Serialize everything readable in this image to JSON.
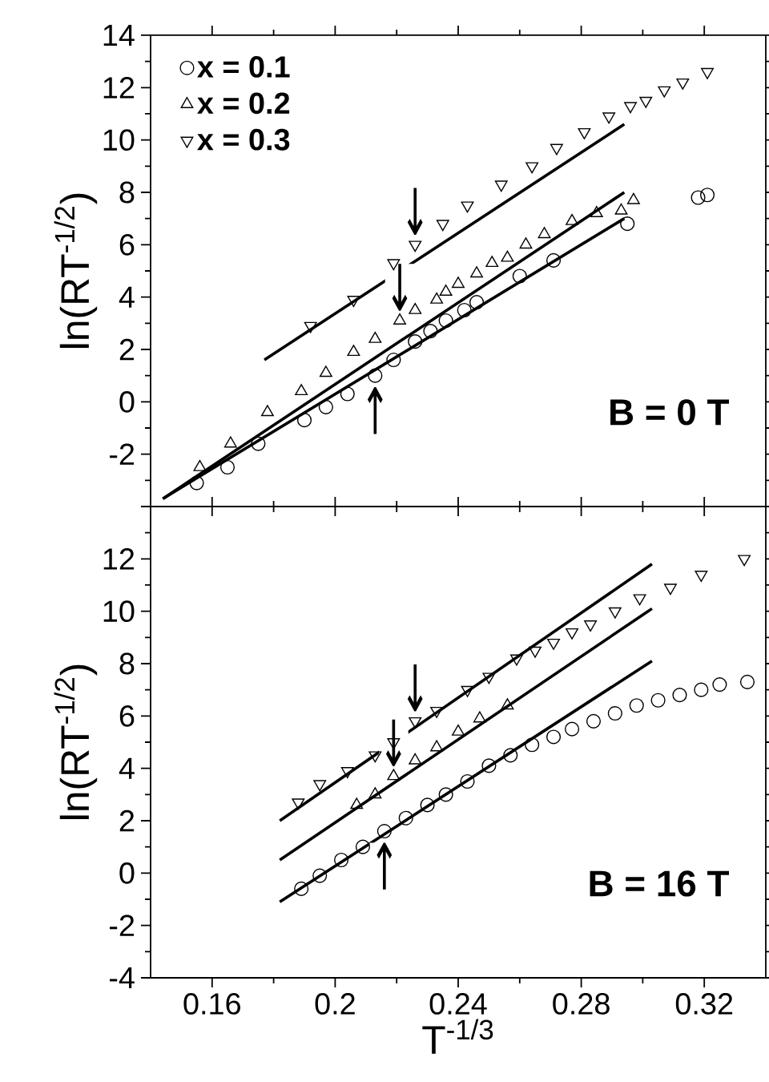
{
  "chart_data": [
    {
      "type": "scatter",
      "ylabel": "ln(RT$^{-1/2}$)",
      "xlim": [
        0.14,
        0.34
      ],
      "ylim": [
        -4,
        14
      ],
      "xticks": [
        0.16,
        0.2,
        0.24,
        0.28,
        0.32
      ],
      "yticks": [
        {
          "value": -4,
          "label": null
        },
        -2,
        0,
        2,
        4,
        6,
        8,
        10,
        12,
        14
      ],
      "tick_labels": "y",
      "legend": "top left",
      "annotations": [
        "B = 0 T",
        {
          "text": "↓",
          "x": 0.226,
          "y": 6.0
        },
        {
          "text": "↓",
          "x": 0.221,
          "y": 3.1
        },
        {
          "text": "↑",
          "x": 0.213,
          "y": 1.0
        }
      ],
      "series": [
        {
          "name": "x = 0.1",
          "marker": "circle",
          "color": "#000000",
          "x": [
            0.155,
            0.165,
            0.175,
            0.19,
            0.197,
            0.204,
            0.213,
            0.219,
            0.226,
            0.231,
            0.236,
            0.242,
            0.246,
            0.26,
            0.271,
            0.295,
            0.318,
            0.321
          ],
          "values": [
            -3.1,
            -2.5,
            -1.6,
            -0.7,
            -0.2,
            0.3,
            1.0,
            1.6,
            2.3,
            2.7,
            3.1,
            3.5,
            3.8,
            4.8,
            5.4,
            6.8,
            7.8,
            7.9
          ]
        },
        {
          "name": "x = 0.2",
          "marker": "triangle",
          "color": "#000000",
          "x": [
            0.156,
            0.166,
            0.178,
            0.189,
            0.197,
            0.206,
            0.213,
            0.221,
            0.226,
            0.233,
            0.236,
            0.24,
            0.246,
            0.251,
            0.256,
            0.262,
            0.268,
            0.277,
            0.285,
            0.293,
            0.297
          ],
          "values": [
            -2.5,
            -1.6,
            -0.4,
            0.4,
            1.1,
            1.9,
            2.4,
            3.1,
            3.5,
            3.9,
            4.2,
            4.5,
            4.9,
            5.3,
            5.5,
            6.0,
            6.4,
            6.9,
            7.2,
            7.3,
            7.7
          ]
        },
        {
          "name": "x = 0.3",
          "marker": "triangle down",
          "color": "#000000",
          "x": [
            0.192,
            0.206,
            0.219,
            0.226,
            0.235,
            0.243,
            0.254,
            0.264,
            0.272,
            0.281,
            0.289,
            0.296,
            0.301,
            0.307,
            0.313,
            0.321
          ],
          "values": [
            2.9,
            3.9,
            5.3,
            6.0,
            6.8,
            7.5,
            8.3,
            9.0,
            9.7,
            10.3,
            10.9,
            11.3,
            11.5,
            11.9,
            12.2,
            12.6
          ]
        },
        {
          "type": "line",
          "marker": "none",
          "color": "#000000",
          "x": [
            0.144,
            0.294
          ],
          "values": [
            -3.7,
            7.0
          ]
        },
        {
          "type": "line",
          "marker": "none",
          "color": "#000000",
          "x": [
            0.144,
            0.294
          ],
          "values": [
            -3.7,
            8.0
          ]
        },
        {
          "type": "line",
          "marker": "none",
          "color": "#000000",
          "x": [
            0.177,
            0.294
          ],
          "values": [
            1.6,
            10.6
          ]
        }
      ]
    },
    {
      "type": "scatter",
      "xlabel": "T$^{-1/3}$",
      "ylabel": "ln(RT$^{-1/2}$)",
      "xlim": [
        0.14,
        0.34
      ],
      "ylim": [
        -4,
        14
      ],
      "xticks": [
        0.16,
        0.2,
        0.24,
        0.28,
        0.32
      ],
      "yticks": [
        -4,
        -2,
        0,
        2,
        4,
        6,
        8,
        10,
        12,
        {
          "value": 14,
          "label": null
        }
      ],
      "annotations": [
        "B = 16 T",
        {
          "text": "↓",
          "x": 0.226,
          "y": 5.8
        },
        {
          "text": "↓",
          "x": 0.219,
          "y": 3.7
        },
        {
          "text": "↑",
          "x": 0.216,
          "y": 1.6
        }
      ],
      "series": [
        {
          "marker": "circle",
          "color": "#000000",
          "x": [
            0.189,
            0.195,
            0.202,
            0.209,
            0.216,
            0.223,
            0.23,
            0.236,
            0.243,
            0.25,
            0.257,
            0.264,
            0.271,
            0.277,
            0.284,
            0.291,
            0.298,
            0.305,
            0.312,
            0.319,
            0.325,
            0.334
          ],
          "values": [
            -0.6,
            -0.1,
            0.5,
            1.0,
            1.6,
            2.1,
            2.6,
            3.0,
            3.5,
            4.1,
            4.5,
            4.9,
            5.2,
            5.5,
            5.8,
            6.1,
            6.4,
            6.6,
            6.8,
            7.0,
            7.2,
            7.3
          ]
        },
        {
          "marker": "triangle",
          "color": "#000000",
          "x": [
            0.207,
            0.213,
            0.219,
            0.226,
            0.233,
            0.24,
            0.247,
            0.256
          ],
          "values": [
            2.6,
            3.0,
            3.7,
            4.3,
            4.8,
            5.4,
            5.9,
            6.4
          ]
        },
        {
          "marker": "triangle down",
          "color": "#000000",
          "x": [
            0.188,
            0.195,
            0.204,
            0.213,
            0.219,
            0.226,
            0.233,
            0.243,
            0.25,
            0.259,
            0.265,
            0.271,
            0.277,
            0.283,
            0.291,
            0.299,
            0.309,
            0.319,
            0.333
          ],
          "values": [
            2.7,
            3.4,
            3.9,
            4.5,
            5.0,
            5.8,
            6.2,
            7.0,
            7.5,
            8.2,
            8.5,
            8.8,
            9.2,
            9.5,
            10.0,
            10.5,
            10.9,
            11.4,
            12.0
          ]
        },
        {
          "type": "line",
          "marker": "none",
          "color": "#000000",
          "x": [
            0.182,
            0.303
          ],
          "values": [
            -1.1,
            8.1
          ]
        },
        {
          "type": "line",
          "marker": "none",
          "color": "#000000",
          "x": [
            0.182,
            0.303
          ],
          "values": [
            0.5,
            10.1
          ]
        },
        {
          "type": "line",
          "marker": "none",
          "color": "#000000",
          "x": [
            0.182,
            0.303
          ],
          "values": [
            2.0,
            11.8
          ]
        }
      ]
    }
  ]
}
